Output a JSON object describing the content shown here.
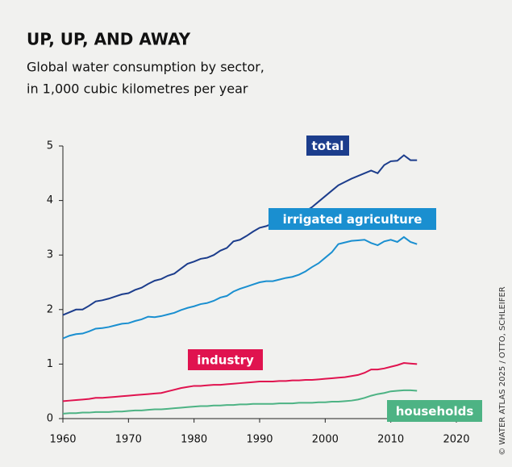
{
  "chart_data": {
    "type": "line",
    "title": "UP, UP, AND AWAY",
    "subtitle": [
      "Global water consumption by sector,",
      "in 1,000 cubic kilometres per year"
    ],
    "source": "© WATER ATLAS 2025 / OTTO, SCHLEIFER",
    "x": [
      1960,
      1961,
      1962,
      1963,
      1964,
      1965,
      1966,
      1967,
      1968,
      1969,
      1970,
      1971,
      1972,
      1973,
      1974,
      1975,
      1976,
      1977,
      1978,
      1979,
      1980,
      1981,
      1982,
      1983,
      1984,
      1985,
      1986,
      1987,
      1988,
      1989,
      1990,
      1991,
      1992,
      1993,
      1994,
      1995,
      1996,
      1997,
      1998,
      1999,
      2000,
      2001,
      2002,
      2003,
      2004,
      2005,
      2006,
      2007,
      2008,
      2009,
      2010,
      2011,
      2012,
      2013,
      2014
    ],
    "series": [
      {
        "name": "total",
        "color": "#1c3d8c",
        "values": [
          1.9,
          1.95,
          2.0,
          2.0,
          2.07,
          2.15,
          2.17,
          2.2,
          2.24,
          2.28,
          2.3,
          2.36,
          2.4,
          2.47,
          2.53,
          2.56,
          2.62,
          2.66,
          2.75,
          2.84,
          2.88,
          2.93,
          2.95,
          3.0,
          3.08,
          3.13,
          3.25,
          3.28,
          3.35,
          3.43,
          3.5,
          3.53,
          3.58,
          3.62,
          3.66,
          3.7,
          3.74,
          3.8,
          3.88,
          3.98,
          4.08,
          4.18,
          4.28,
          4.34,
          4.4,
          4.45,
          4.5,
          4.55,
          4.5,
          4.65,
          4.72,
          4.73,
          4.83,
          4.74,
          4.74
        ]
      },
      {
        "name": "irrigated agriculture",
        "color": "#1a8fd0",
        "values": [
          1.47,
          1.52,
          1.55,
          1.56,
          1.6,
          1.65,
          1.66,
          1.68,
          1.71,
          1.74,
          1.75,
          1.79,
          1.82,
          1.87,
          1.86,
          1.88,
          1.91,
          1.94,
          1.99,
          2.03,
          2.06,
          2.1,
          2.12,
          2.16,
          2.22,
          2.25,
          2.33,
          2.38,
          2.42,
          2.46,
          2.5,
          2.52,
          2.52,
          2.55,
          2.58,
          2.6,
          2.64,
          2.7,
          2.78,
          2.85,
          2.95,
          3.05,
          3.2,
          3.23,
          3.26,
          3.27,
          3.28,
          3.22,
          3.18,
          3.25,
          3.28,
          3.24,
          3.33,
          3.24,
          3.2
        ]
      },
      {
        "name": "industry",
        "color": "#e0134f",
        "values": [
          0.32,
          0.33,
          0.34,
          0.35,
          0.36,
          0.38,
          0.38,
          0.39,
          0.4,
          0.41,
          0.42,
          0.43,
          0.44,
          0.45,
          0.46,
          0.47,
          0.5,
          0.53,
          0.56,
          0.58,
          0.6,
          0.6,
          0.61,
          0.62,
          0.62,
          0.63,
          0.64,
          0.65,
          0.66,
          0.67,
          0.68,
          0.68,
          0.68,
          0.69,
          0.69,
          0.7,
          0.7,
          0.71,
          0.71,
          0.72,
          0.73,
          0.74,
          0.75,
          0.76,
          0.78,
          0.8,
          0.84,
          0.9,
          0.9,
          0.92,
          0.95,
          0.98,
          1.02,
          1.01,
          1.0
        ]
      },
      {
        "name": "households",
        "color": "#4db384",
        "values": [
          0.09,
          0.1,
          0.1,
          0.11,
          0.11,
          0.12,
          0.12,
          0.12,
          0.13,
          0.13,
          0.14,
          0.15,
          0.15,
          0.16,
          0.17,
          0.17,
          0.18,
          0.19,
          0.2,
          0.21,
          0.22,
          0.23,
          0.23,
          0.24,
          0.24,
          0.25,
          0.25,
          0.26,
          0.26,
          0.27,
          0.27,
          0.27,
          0.27,
          0.28,
          0.28,
          0.28,
          0.29,
          0.29,
          0.29,
          0.3,
          0.3,
          0.31,
          0.31,
          0.32,
          0.33,
          0.35,
          0.38,
          0.42,
          0.45,
          0.47,
          0.5,
          0.51,
          0.52,
          0.52,
          0.51
        ]
      }
    ],
    "xlim": [
      1960,
      2020
    ],
    "xticks": [
      1960,
      1970,
      1980,
      1990,
      2000,
      2010,
      2020
    ],
    "ylim": [
      0,
      5
    ],
    "yticks": [
      0,
      1,
      2,
      3,
      4,
      5
    ]
  }
}
